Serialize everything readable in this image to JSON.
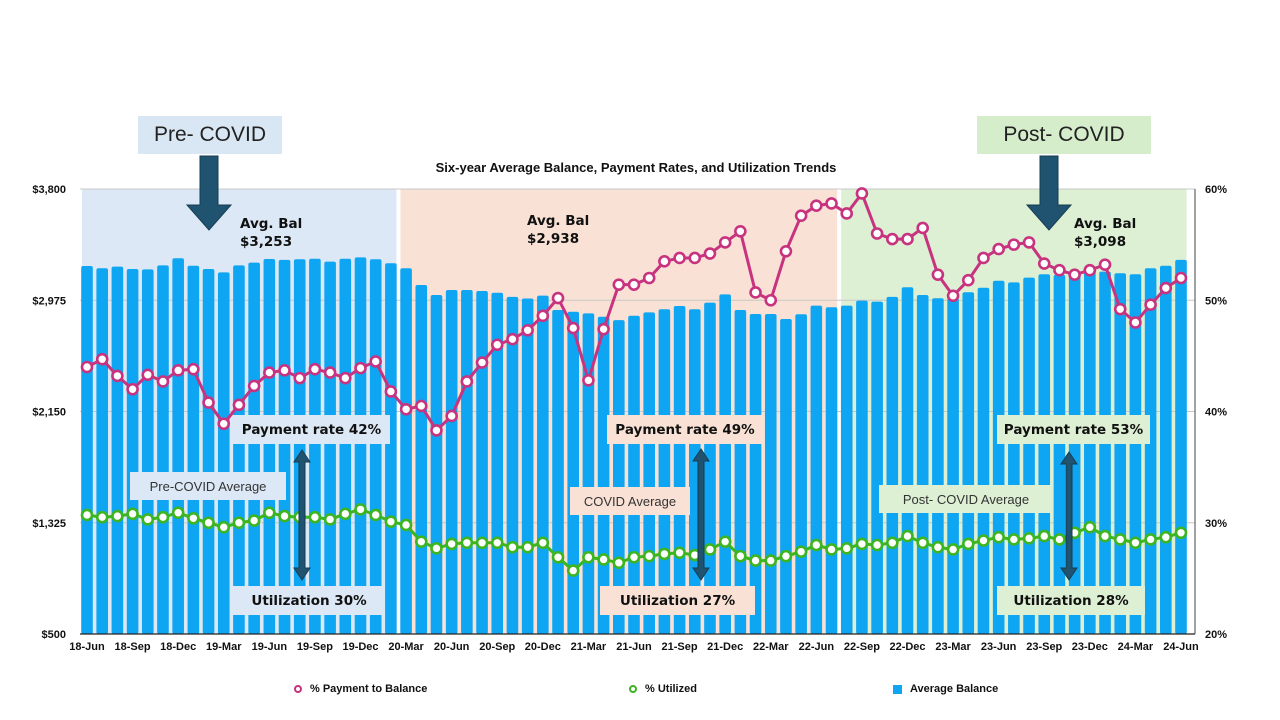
{
  "chart_data": {
    "type": "bar+line",
    "title": "Six-year Average Balance, Payment Rates, and Utilization Trends",
    "categories": [
      "18-Jun",
      "18-Jul",
      "18-Aug",
      "18-Sep",
      "18-Oct",
      "18-Nov",
      "18-Dec",
      "19-Jan",
      "19-Feb",
      "19-Mar",
      "19-Apr",
      "19-May",
      "19-Jun",
      "19-Jul",
      "19-Aug",
      "19-Sep",
      "19-Oct",
      "19-Nov",
      "19-Dec",
      "20-Jan",
      "20-Feb",
      "20-Mar",
      "20-Apr",
      "20-May",
      "20-Jun",
      "20-Jul",
      "20-Aug",
      "20-Sep",
      "20-Oct",
      "20-Nov",
      "20-Dec",
      "21-Jan",
      "21-Feb",
      "21-Mar",
      "21-Apr",
      "21-May",
      "21-Jun",
      "21-Jul",
      "21-Aug",
      "21-Sep",
      "21-Oct",
      "21-Nov",
      "21-Dec",
      "22-Jan",
      "22-Feb",
      "22-Mar",
      "22-Apr",
      "22-May",
      "22-Jun",
      "22-Jul",
      "22-Aug",
      "22-Sep",
      "22-Oct",
      "22-Nov",
      "22-Dec",
      "23-Jan",
      "23-Feb",
      "23-Mar",
      "23-Apr",
      "23-May",
      "23-Jun",
      "23-Jul",
      "23-Aug",
      "23-Sep",
      "23-Oct",
      "23-Nov",
      "23-Dec",
      "24-Jan",
      "24-Feb",
      "24-Mar",
      "24-Apr",
      "24-May",
      "24-Jun"
    ],
    "x_tick_labels": [
      "18-Jun",
      "18-Sep",
      "18-Dec",
      "19-Mar",
      "19-Jun",
      "19-Sep",
      "19-Dec",
      "20-Mar",
      "20-Jun",
      "20-Sep",
      "20-Dec",
      "21-Mar",
      "21-Jun",
      "21-Sep",
      "21-Dec",
      "22-Mar",
      "22-Jun",
      "22-Sep",
      "22-Dec",
      "23-Mar",
      "23-Jun",
      "23-Sep",
      "23-Dec",
      "24-Mar",
      "24-Jun"
    ],
    "y_left": {
      "range": [
        500,
        3800
      ],
      "ticks": [
        "$500",
        "$1,325",
        "$2,150",
        "$2,975",
        "$3,800"
      ],
      "tick_values": [
        500,
        1325,
        2150,
        2975,
        3800
      ]
    },
    "y_right": {
      "range": [
        20,
        60
      ],
      "ticks": [
        "20%",
        "30%",
        "40%",
        "50%",
        "60%"
      ],
      "tick_values": [
        20,
        30,
        40,
        50,
        60
      ]
    },
    "grid": true,
    "legend_position": "bottom",
    "series": [
      {
        "name": "% Payment to Balance",
        "type": "line",
        "axis": "right",
        "color": "#c8337f",
        "values": [
          44.0,
          44.7,
          43.2,
          42.0,
          43.3,
          42.7,
          43.7,
          43.8,
          40.8,
          38.9,
          40.6,
          42.3,
          43.5,
          43.7,
          43.0,
          43.8,
          43.5,
          43.0,
          43.9,
          44.5,
          41.8,
          40.2,
          40.5,
          38.3,
          39.6,
          42.7,
          44.4,
          46.0,
          46.5,
          47.3,
          48.6,
          50.2,
          47.5,
          42.8,
          47.4,
          51.4,
          51.4,
          52.0,
          53.5,
          53.8,
          53.8,
          54.2,
          55.2,
          56.2,
          50.7,
          50.0,
          54.4,
          57.6,
          58.5,
          58.7,
          57.8,
          59.6,
          56.0,
          55.5,
          55.5,
          56.5,
          52.3,
          50.4,
          51.8,
          53.8,
          54.6,
          55.0,
          55.2,
          53.3,
          52.7,
          52.3,
          52.7,
          53.2,
          49.2,
          48.0,
          49.6,
          51.1,
          52.0
        ]
      },
      {
        "name": "% Utilized",
        "type": "line",
        "axis": "right",
        "color": "#3cb521",
        "values": [
          30.7,
          30.5,
          30.6,
          30.8,
          30.3,
          30.5,
          30.9,
          30.4,
          30.0,
          29.6,
          30.0,
          30.2,
          30.9,
          30.6,
          30.5,
          30.5,
          30.3,
          30.8,
          31.2,
          30.7,
          30.1,
          29.8,
          28.3,
          27.7,
          28.1,
          28.2,
          28.2,
          28.2,
          27.8,
          27.8,
          28.2,
          26.9,
          25.7,
          26.9,
          26.7,
          26.4,
          26.9,
          27.0,
          27.2,
          27.3,
          27.1,
          27.6,
          28.3,
          27.0,
          26.6,
          26.6,
          27.0,
          27.4,
          28.0,
          27.6,
          27.7,
          28.1,
          28.0,
          28.2,
          28.8,
          28.2,
          27.8,
          27.6,
          28.1,
          28.4,
          28.7,
          28.5,
          28.6,
          28.8,
          28.5,
          29.1,
          29.6,
          28.8,
          28.5,
          28.2,
          28.5,
          28.7,
          29.1
        ]
      },
      {
        "name": "Average Balance",
        "type": "bar",
        "axis": "left",
        "color": "#0ea5f2",
        "values": [
          3229,
          3212,
          3224,
          3207,
          3204,
          3234,
          3286,
          3231,
          3207,
          3182,
          3234,
          3254,
          3281,
          3274,
          3279,
          3283,
          3261,
          3283,
          3293,
          3279,
          3249,
          3212,
          3088,
          3014,
          3051,
          3051,
          3044,
          3031,
          3000,
          2988,
          3009,
          2903,
          2890,
          2878,
          2853,
          2828,
          2860,
          2885,
          2908,
          2932,
          2908,
          2957,
          3019,
          2903,
          2873,
          2873,
          2836,
          2871,
          2935,
          2923,
          2935,
          2972,
          2965,
          3000,
          3071,
          3014,
          2990,
          2990,
          3034,
          3068,
          3120,
          3108,
          3143,
          3168,
          3163,
          3163,
          3212,
          3187,
          3175,
          3168,
          3212,
          3231,
          3274
        ]
      }
    ],
    "periods": [
      {
        "label": "Pre- COVID",
        "start": "18-Jun",
        "end": "20-Feb",
        "color": "#dce8f5",
        "tag_color": "#d9e7f4",
        "avg_bal_label": "Avg. Bal",
        "avg_bal": "$3,253",
        "payment_label": "Payment rate 42%",
        "average_label": "Pre-COVID Average",
        "utilization_label": "Utilization 30%"
      },
      {
        "label": "",
        "start": "20-Mar",
        "end": "22-Jul",
        "color": "#f9e2d5",
        "avg_bal_label": "Avg. Bal",
        "avg_bal": "$2,938",
        "payment_label": "Payment rate 49%",
        "average_label": "COVID Average",
        "utilization_label": "Utilization 27%"
      },
      {
        "label": "Post- COVID",
        "start": "22-Aug",
        "end": "24-Jun",
        "color": "#ddf0d4",
        "tag_color": "#d6edcc",
        "avg_bal_label": "Avg. Bal",
        "avg_bal": "$3,098",
        "payment_label": "Payment rate 53%",
        "average_label": "Post- COVID Average",
        "utilization_label": "Utilization 28%"
      }
    ],
    "arrow_color": "#1f5370"
  }
}
